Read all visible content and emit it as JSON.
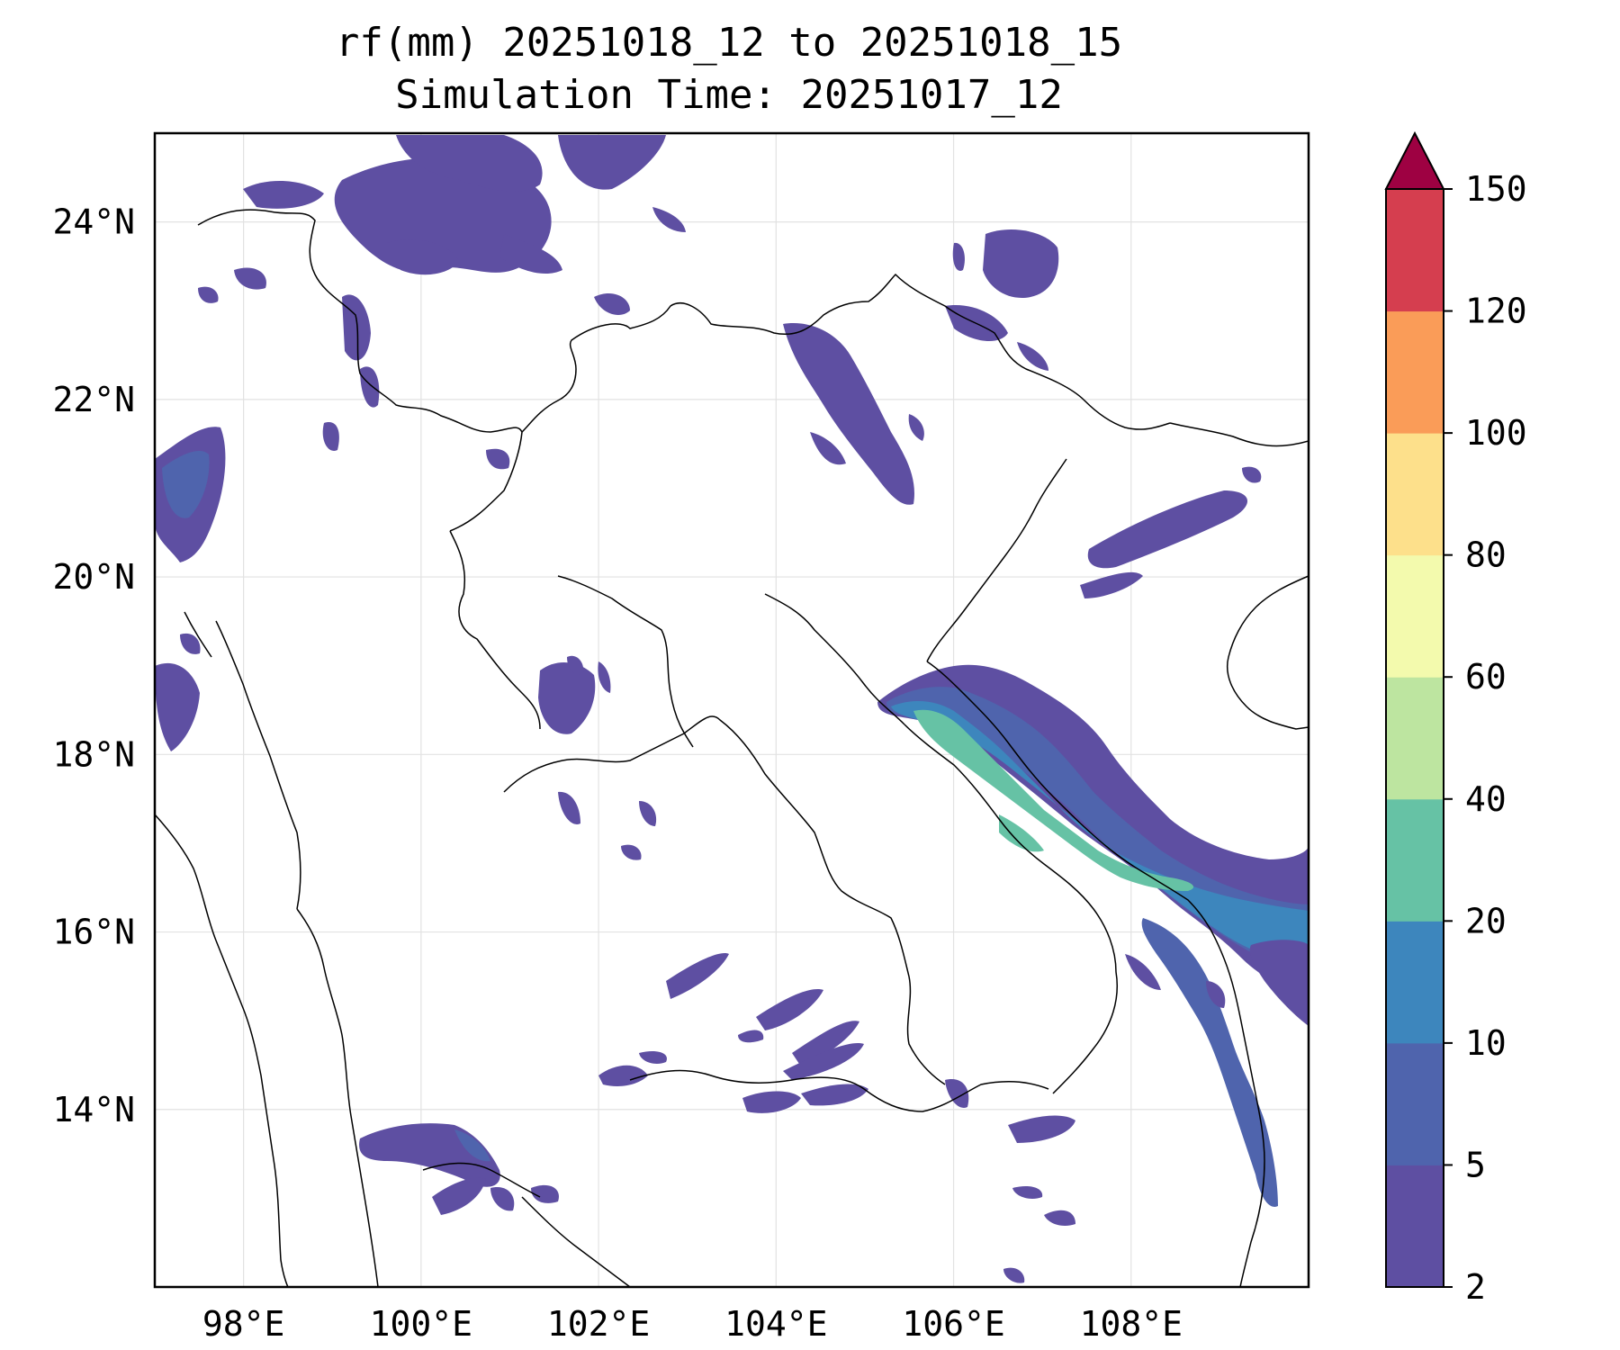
{
  "title": {
    "line1": "rf(mm) 20251018_12 to 20251018_15",
    "line2": "Simulation Time: 20251017_12"
  },
  "map": {
    "lon_range": [
      97,
      110
    ],
    "lat_range": [
      12,
      25
    ],
    "lon_ticks": [
      98,
      100,
      102,
      104,
      106,
      108
    ],
    "lat_ticks": [
      14,
      16,
      18,
      20,
      22,
      24
    ],
    "lon_tick_labels": [
      "98°E",
      "100°E",
      "102°E",
      "104°E",
      "106°E",
      "108°E"
    ],
    "lat_tick_labels": [
      "14°N",
      "16°N",
      "18°N",
      "20°N",
      "22°N",
      "24°N"
    ],
    "gridlines": true,
    "border_color": "#000000"
  },
  "colorbar": {
    "levels": [
      2,
      5,
      10,
      20,
      40,
      60,
      80,
      100,
      120,
      150
    ],
    "labels": [
      "2",
      "5",
      "10",
      "20",
      "40",
      "60",
      "80",
      "100",
      "120",
      "150"
    ],
    "colors": [
      "#5e4fa2",
      "#4f64ad",
      "#3d86bd",
      "#66c2a5",
      "#bde5a0",
      "#f3faad",
      "#fde08b",
      "#fa9c58",
      "#d53e4f"
    ],
    "extend_color": "#9e0142",
    "extend": "max"
  },
  "rain_colors": {
    "c2": "#5e4fa2",
    "c5": "#4f64ad",
    "c10": "#3d86bd",
    "c20": "#66c2a5"
  }
}
